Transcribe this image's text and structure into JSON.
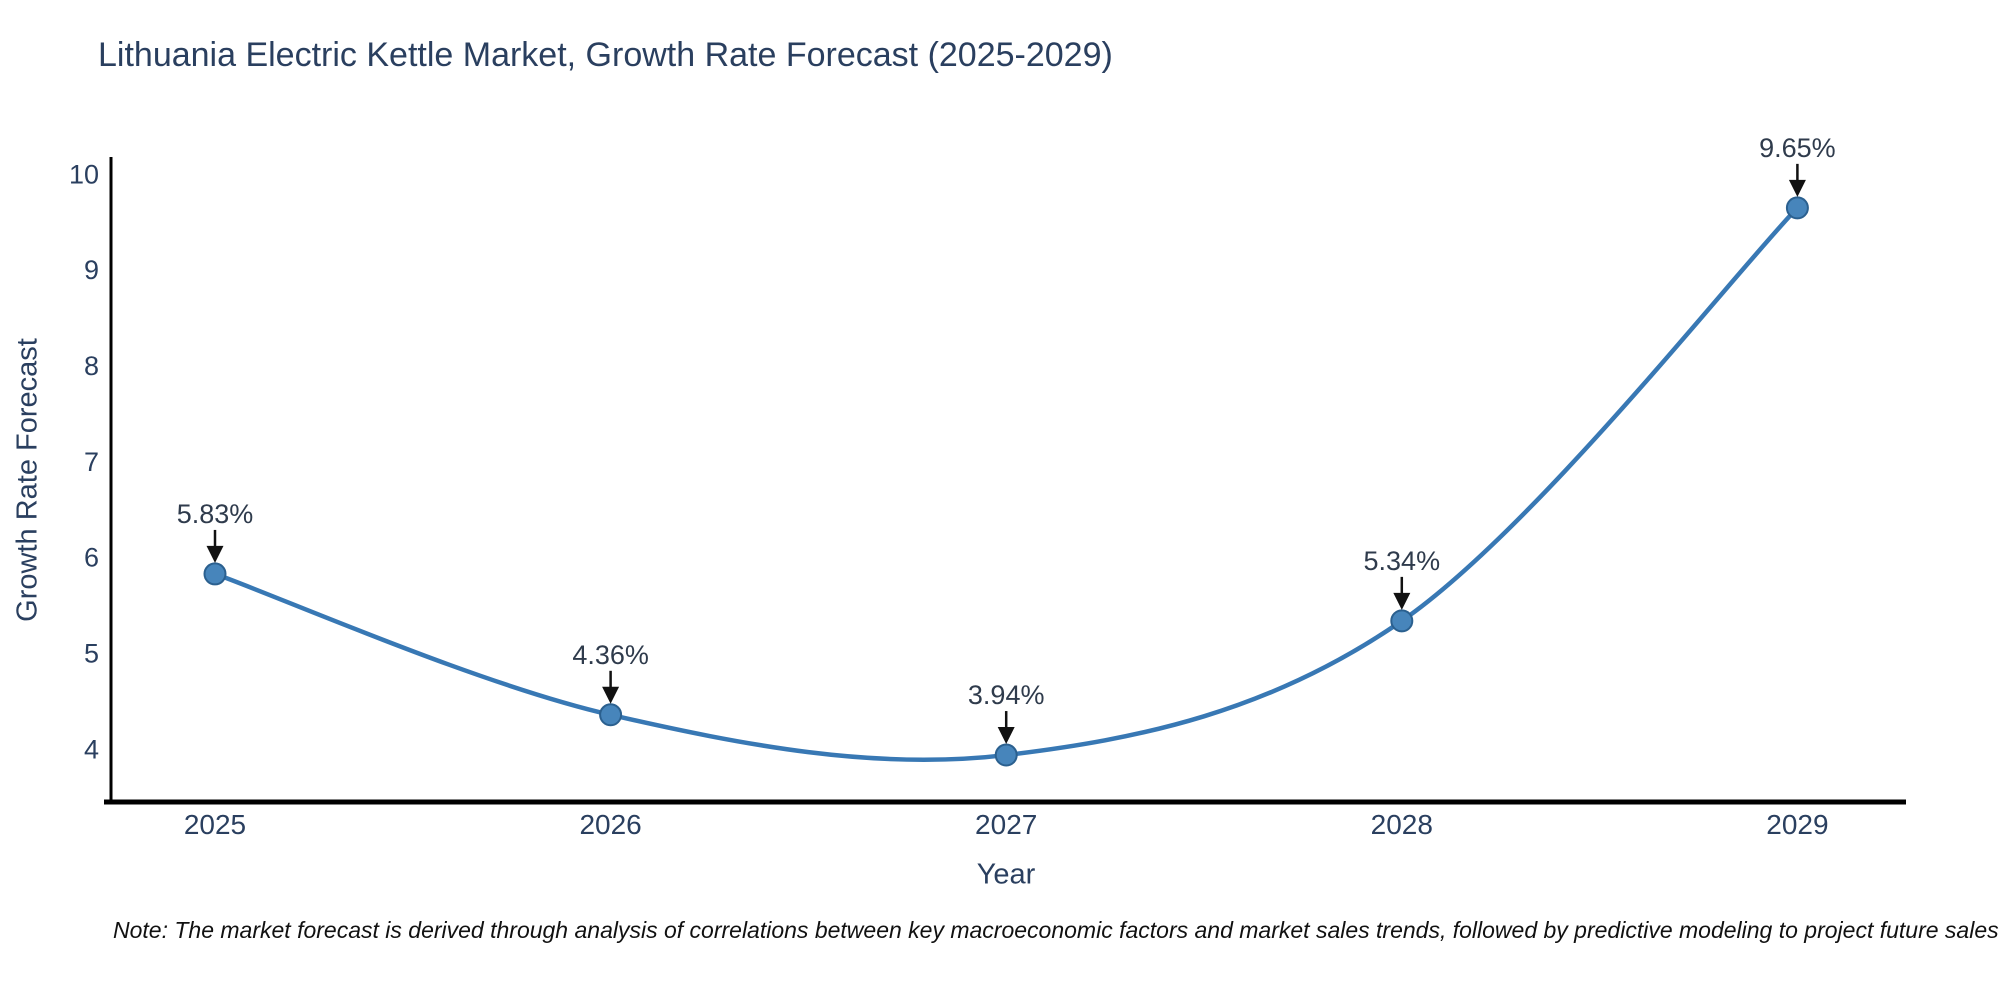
{
  "title": "Lithuania Electric Kettle Market, Growth Rate Forecast (2025-2029)",
  "note": "Note: The market forecast is derived through analysis of correlations between key macroeconomic factors and market sales trends, followed by predictive modeling to project future sales",
  "chart_data": {
    "type": "line",
    "title": "Lithuania Electric Kettle Market, Growth Rate Forecast (2025-2029)",
    "xlabel": "Year",
    "ylabel": "Growth Rate Forecast",
    "x": [
      2025,
      2026,
      2027,
      2028,
      2029
    ],
    "series": [
      {
        "name": "Growth Rate Forecast",
        "values": [
          5.83,
          4.36,
          3.94,
          5.34,
          9.65
        ]
      }
    ],
    "point_labels": [
      "5.83%",
      "4.36%",
      "3.94%",
      "5.34%",
      "9.65%"
    ],
    "yticks": [
      4,
      5,
      6,
      7,
      8,
      9,
      10
    ],
    "ylim": [
      3.45,
      10.2
    ],
    "xlim": [
      2024.74,
      2029.27
    ],
    "grid": false,
    "legend_position": "none",
    "line_shape": "spline",
    "colors": {
      "line": "#3878b4",
      "marker_fill": "#4785bb",
      "marker_edge": "#2b608f",
      "axis": "#000000",
      "tick_text": "#2a3f5f",
      "annotation_text": "#2f3b4c",
      "arrow": "#111111"
    }
  }
}
